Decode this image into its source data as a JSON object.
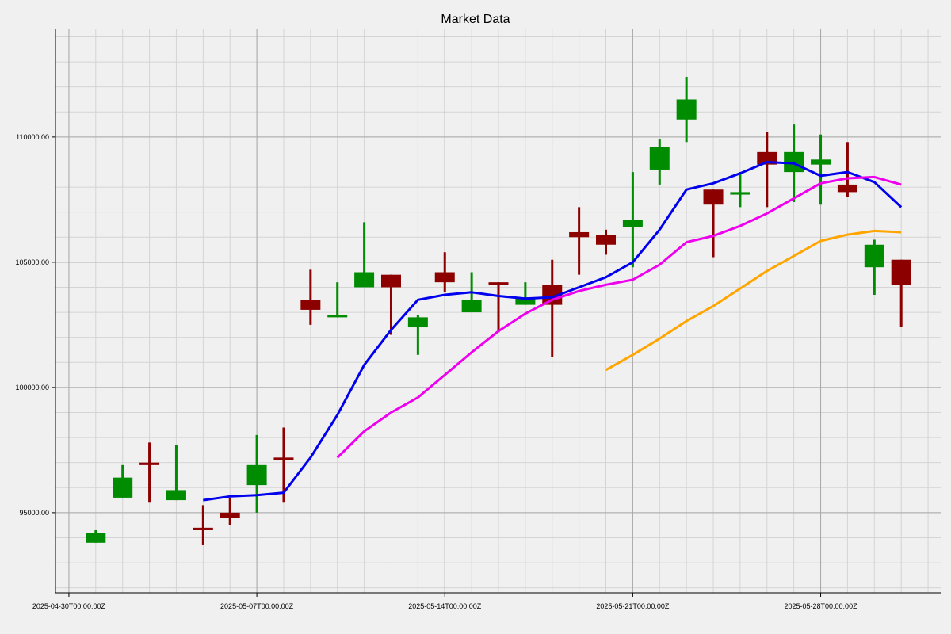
{
  "chart_data": {
    "type": "candlestick",
    "title": "Market Data",
    "xlabel": "",
    "ylabel": "",
    "ylim": [
      91800,
      114300
    ],
    "grid": true,
    "legend": "none",
    "x_tick_labels": [
      "2025-04-30T00:00:00Z",
      "2025-05-07T00:00:00Z",
      "2025-05-14T00:00:00Z",
      "2025-05-21T00:00:00Z",
      "2025-05-28T00:00:00Z"
    ],
    "y_tick_values": [
      95000,
      100000,
      105000,
      110000
    ],
    "y_tick_labels": [
      "95000.00",
      "100000.00",
      "105000.00",
      "110000.00"
    ],
    "colors": {
      "up": "#008c00",
      "down": "#8c0000",
      "ma_short": "#0000ee",
      "ma_mid": "#ee00ee",
      "ma_long": "#ffa500",
      "background": "#f0f0f0"
    },
    "candles": [
      {
        "date": "2025-05-01",
        "open": 93800,
        "high": 94300,
        "low": 93800,
        "close": 94200
      },
      {
        "date": "2025-05-02",
        "open": 95600,
        "high": 96900,
        "low": 95600,
        "close": 96400
      },
      {
        "date": "2025-05-03",
        "open": 97000,
        "high": 97800,
        "low": 95400,
        "close": 96900
      },
      {
        "date": "2025-05-04",
        "open": 95500,
        "high": 97700,
        "low": 95500,
        "close": 95900
      },
      {
        "date": "2025-05-05",
        "open": 94400,
        "high": 95300,
        "low": 93700,
        "close": 94300
      },
      {
        "date": "2025-05-06",
        "open": 95000,
        "high": 95600,
        "low": 94500,
        "close": 94800
      },
      {
        "date": "2025-05-07",
        "open": 96100,
        "high": 98100,
        "low": 95000,
        "close": 96900
      },
      {
        "date": "2025-05-08",
        "open": 97200,
        "high": 98400,
        "low": 95400,
        "close": 97100
      },
      {
        "date": "2025-05-09",
        "open": 103500,
        "high": 104700,
        "low": 102500,
        "close": 103100
      },
      {
        "date": "2025-05-10",
        "open": 102800,
        "high": 104200,
        "low": 102800,
        "close": 102900
      },
      {
        "date": "2025-05-11",
        "open": 104000,
        "high": 106600,
        "low": 104000,
        "close": 104600
      },
      {
        "date": "2025-05-12",
        "open": 104500,
        "high": 104500,
        "low": 102100,
        "close": 104000
      },
      {
        "date": "2025-05-13",
        "open": 102400,
        "high": 102900,
        "low": 101300,
        "close": 102800
      },
      {
        "date": "2025-05-14",
        "open": 104600,
        "high": 105400,
        "low": 103800,
        "close": 104200
      },
      {
        "date": "2025-05-15",
        "open": 103000,
        "high": 104600,
        "low": 103000,
        "close": 103500
      },
      {
        "date": "2025-05-16",
        "open": 104200,
        "high": 104200,
        "low": 102200,
        "close": 104100
      },
      {
        "date": "2025-05-17",
        "open": 103300,
        "high": 104200,
        "low": 103300,
        "close": 103600
      },
      {
        "date": "2025-05-18",
        "open": 104100,
        "high": 105100,
        "low": 101200,
        "close": 103300
      },
      {
        "date": "2025-05-19",
        "open": 106200,
        "high": 107200,
        "low": 104500,
        "close": 106000
      },
      {
        "date": "2025-05-20",
        "open": 106100,
        "high": 106300,
        "low": 105300,
        "close": 105700
      },
      {
        "date": "2025-05-21",
        "open": 106400,
        "high": 108600,
        "low": 104800,
        "close": 106700
      },
      {
        "date": "2025-05-22",
        "open": 108700,
        "high": 109900,
        "low": 108100,
        "close": 109600
      },
      {
        "date": "2025-05-23",
        "open": 110700,
        "high": 112400,
        "low": 109800,
        "close": 111500
      },
      {
        "date": "2025-05-24",
        "open": 107900,
        "high": 107900,
        "low": 105200,
        "close": 107300
      },
      {
        "date": "2025-05-25",
        "open": 107700,
        "high": 108600,
        "low": 107200,
        "close": 107800
      },
      {
        "date": "2025-05-26",
        "open": 109400,
        "high": 110200,
        "low": 107200,
        "close": 108900
      },
      {
        "date": "2025-05-27",
        "open": 108600,
        "high": 110500,
        "low": 107400,
        "close": 109400
      },
      {
        "date": "2025-05-28",
        "open": 108900,
        "high": 110100,
        "low": 107300,
        "close": 109100
      },
      {
        "date": "2025-05-29",
        "open": 108100,
        "high": 109800,
        "low": 107600,
        "close": 107800
      },
      {
        "date": "2025-05-30",
        "open": 104800,
        "high": 105900,
        "low": 103700,
        "close": 105700
      },
      {
        "date": "2025-05-31",
        "open": 105100,
        "high": 105100,
        "low": 102400,
        "close": 104100
      }
    ],
    "series": [
      {
        "values": [
          {
            "date": "2025-05-05",
            "value": 95500
          },
          {
            "date": "2025-05-06",
            "value": 95650
          },
          {
            "date": "2025-05-07",
            "value": 95700
          },
          {
            "date": "2025-05-08",
            "value": 95800
          },
          {
            "date": "2025-05-09",
            "value": 97200
          },
          {
            "date": "2025-05-10",
            "value": 98900
          },
          {
            "date": "2025-05-11",
            "value": 100900
          },
          {
            "date": "2025-05-12",
            "value": 102300
          },
          {
            "date": "2025-05-13",
            "value": 103500
          },
          {
            "date": "2025-05-14",
            "value": 103700
          },
          {
            "date": "2025-05-15",
            "value": 103800
          },
          {
            "date": "2025-05-16",
            "value": 103650
          },
          {
            "date": "2025-05-17",
            "value": 103550
          },
          {
            "date": "2025-05-18",
            "value": 103600
          },
          {
            "date": "2025-05-19",
            "value": 104000
          },
          {
            "date": "2025-05-20",
            "value": 104400
          },
          {
            "date": "2025-05-21",
            "value": 105000
          },
          {
            "date": "2025-05-22",
            "value": 106300
          },
          {
            "date": "2025-05-23",
            "value": 107900
          },
          {
            "date": "2025-05-24",
            "value": 108150
          },
          {
            "date": "2025-05-25",
            "value": 108550
          },
          {
            "date": "2025-05-26",
            "value": 109000
          },
          {
            "date": "2025-05-27",
            "value": 108950
          },
          {
            "date": "2025-05-28",
            "value": 108450
          },
          {
            "date": "2025-05-29",
            "value": 108600
          },
          {
            "date": "2025-05-30",
            "value": 108200
          },
          {
            "date": "2025-05-31",
            "value": 107200
          }
        ]
      },
      {
        "values": [
          {
            "date": "2025-05-10",
            "value": 97200
          },
          {
            "date": "2025-05-11",
            "value": 98250
          },
          {
            "date": "2025-05-12",
            "value": 99000
          },
          {
            "date": "2025-05-13",
            "value": 99600
          },
          {
            "date": "2025-05-14",
            "value": 100500
          },
          {
            "date": "2025-05-15",
            "value": 101400
          },
          {
            "date": "2025-05-16",
            "value": 102250
          },
          {
            "date": "2025-05-17",
            "value": 102950
          },
          {
            "date": "2025-05-18",
            "value": 103500
          },
          {
            "date": "2025-05-19",
            "value": 103850
          },
          {
            "date": "2025-05-20",
            "value": 104100
          },
          {
            "date": "2025-05-21",
            "value": 104300
          },
          {
            "date": "2025-05-22",
            "value": 104900
          },
          {
            "date": "2025-05-23",
            "value": 105800
          },
          {
            "date": "2025-05-24",
            "value": 106050
          },
          {
            "date": "2025-05-25",
            "value": 106450
          },
          {
            "date": "2025-05-26",
            "value": 106950
          },
          {
            "date": "2025-05-27",
            "value": 107550
          },
          {
            "date": "2025-05-28",
            "value": 108150
          },
          {
            "date": "2025-05-29",
            "value": 108350
          },
          {
            "date": "2025-05-30",
            "value": 108400
          },
          {
            "date": "2025-05-31",
            "value": 108100
          }
        ]
      },
      {
        "values": [
          {
            "date": "2025-05-20",
            "value": 100700
          },
          {
            "date": "2025-05-21",
            "value": 101300
          },
          {
            "date": "2025-05-22",
            "value": 101950
          },
          {
            "date": "2025-05-23",
            "value": 102650
          },
          {
            "date": "2025-05-24",
            "value": 103250
          },
          {
            "date": "2025-05-25",
            "value": 103950
          },
          {
            "date": "2025-05-26",
            "value": 104650
          },
          {
            "date": "2025-05-27",
            "value": 105250
          },
          {
            "date": "2025-05-28",
            "value": 105850
          },
          {
            "date": "2025-05-29",
            "value": 106100
          },
          {
            "date": "2025-05-30",
            "value": 106250
          },
          {
            "date": "2025-05-31",
            "value": 106200
          }
        ]
      }
    ]
  }
}
